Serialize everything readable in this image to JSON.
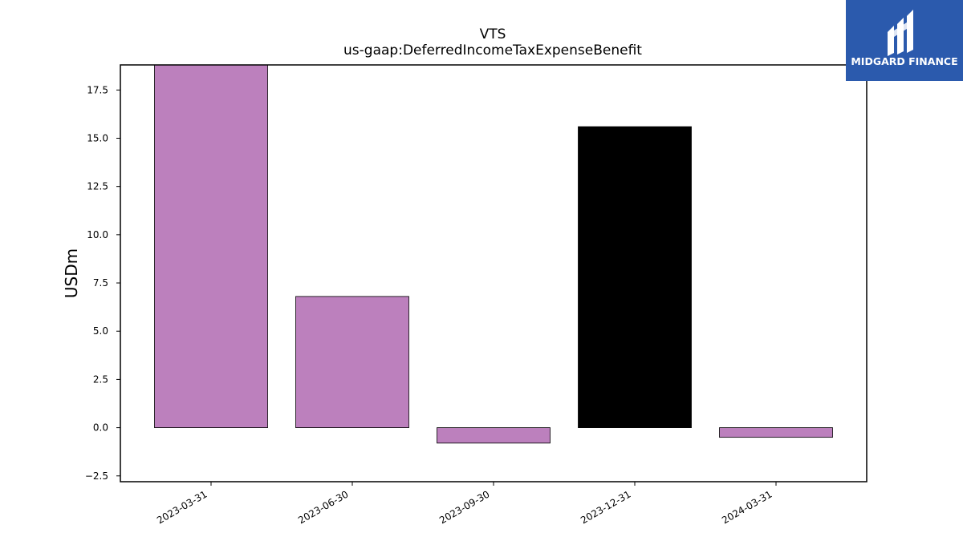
{
  "chart_data": {
    "type": "bar",
    "title": "VTS",
    "subtitle": "us-gaap:DeferredIncomeTaxExpenseBenefit",
    "xlabel": "",
    "ylabel": "USDm",
    "categories": [
      "2023-03-31",
      "2023-06-30",
      "2023-09-30",
      "2023-12-31",
      "2024-03-31"
    ],
    "values": [
      18.8,
      6.8,
      -0.8,
      15.6,
      -0.5
    ],
    "bar_colors": [
      "#bc80bd",
      "#bc80bd",
      "#bc80bd",
      "#000000",
      "#bc80bd"
    ],
    "ylim": [
      -2.8,
      18.8
    ],
    "yticks": [
      -2.5,
      0.0,
      2.5,
      5.0,
      7.5,
      10.0,
      12.5,
      15.0,
      17.5
    ],
    "ytick_labels": [
      "−2.5",
      "0.0",
      "2.5",
      "5.0",
      "7.5",
      "10.0",
      "12.5",
      "15.0",
      "17.5"
    ],
    "grid": false,
    "legend": "none"
  },
  "logo": {
    "text": "MIDGARD FINANCE",
    "background": "#2b5aad",
    "icon": "midgard-m-icon"
  }
}
